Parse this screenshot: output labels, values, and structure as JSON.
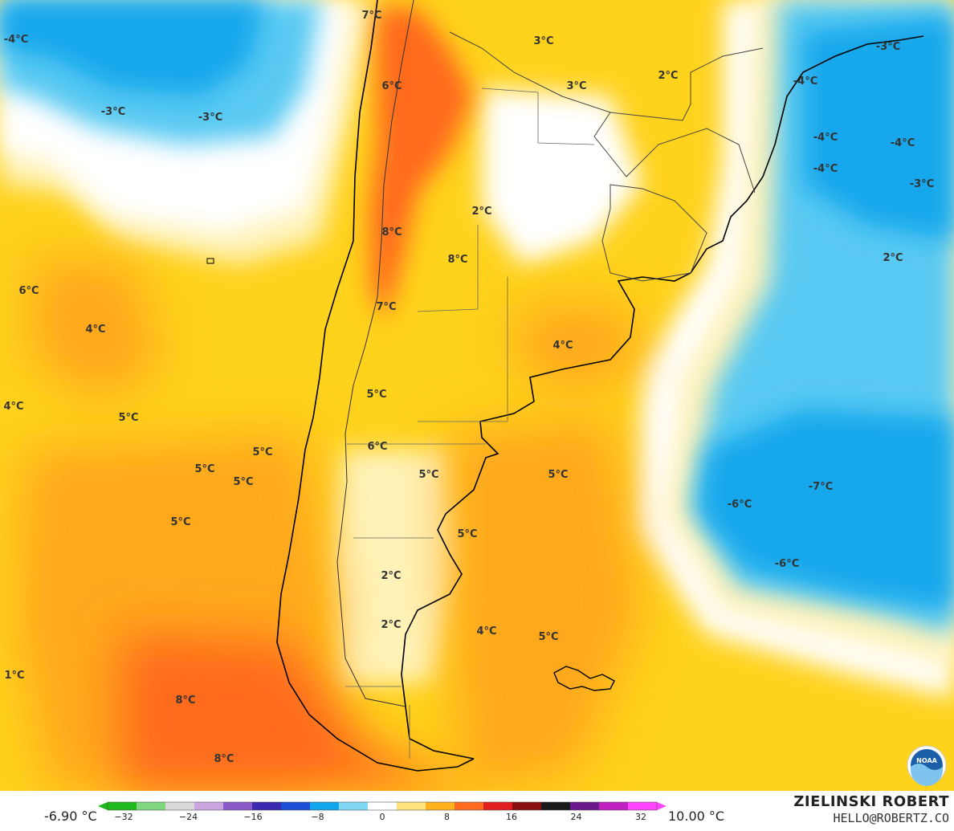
{
  "map": {
    "colors": {
      "ocean_cold": "#12a7ec",
      "ocean_cool": "#59c9f2",
      "ocean_pale": "#b9e9f9",
      "neutral": "#ffffff",
      "warm_pale": "#fff2b8",
      "warm": "#ffd21c",
      "warm_orange": "#ffa81c",
      "hot": "#ff6a1e",
      "coast": "#000000",
      "border": "#555555"
    },
    "labels": [
      {
        "id": "l1",
        "text": "-4°C"
      },
      {
        "id": "l2",
        "text": "-3°C"
      },
      {
        "id": "l3",
        "text": "-3°C"
      },
      {
        "id": "l4",
        "text": "7°C"
      },
      {
        "id": "l5",
        "text": "6°C"
      },
      {
        "id": "l6",
        "text": "3°C"
      },
      {
        "id": "l7",
        "text": "3°C"
      },
      {
        "id": "l8",
        "text": "2°C"
      },
      {
        "id": "l9",
        "text": "-3°C"
      },
      {
        "id": "l10",
        "text": "-4°C"
      },
      {
        "id": "l11",
        "text": "-4°C"
      },
      {
        "id": "l12",
        "text": "-4°C"
      },
      {
        "id": "l13",
        "text": "-4°C"
      },
      {
        "id": "l14",
        "text": "-3°C"
      },
      {
        "id": "l15",
        "text": "2°C"
      },
      {
        "id": "l16",
        "text": "2°C"
      },
      {
        "id": "l17",
        "text": "8°C"
      },
      {
        "id": "l18",
        "text": "8°C"
      },
      {
        "id": "l19",
        "text": "7°C"
      },
      {
        "id": "l20",
        "text": "5°C"
      },
      {
        "id": "l21",
        "text": "6°C"
      },
      {
        "id": "l22",
        "text": "4°C"
      },
      {
        "id": "l23",
        "text": "4°C"
      },
      {
        "id": "l24",
        "text": "4°C"
      },
      {
        "id": "l25",
        "text": "5°C"
      },
      {
        "id": "l26",
        "text": "6°C"
      },
      {
        "id": "l27",
        "text": "5°C"
      },
      {
        "id": "l28",
        "text": "5°C"
      },
      {
        "id": "l29",
        "text": "5°C"
      },
      {
        "id": "l30",
        "text": "5°C"
      },
      {
        "id": "l31",
        "text": "5°C"
      },
      {
        "id": "l32",
        "text": "5°C"
      },
      {
        "id": "l33",
        "text": "5°C"
      },
      {
        "id": "l34",
        "text": "-6°C"
      },
      {
        "id": "l35",
        "text": "-7°C"
      },
      {
        "id": "l36",
        "text": "-6°C"
      },
      {
        "id": "l37",
        "text": "2°C"
      },
      {
        "id": "l38",
        "text": "2°C"
      },
      {
        "id": "l39",
        "text": "4°C"
      },
      {
        "id": "l40",
        "text": "5°C"
      },
      {
        "id": "l41",
        "text": "1°C"
      },
      {
        "id": "l42",
        "text": "8°C"
      },
      {
        "id": "l43",
        "text": "8°C"
      }
    ],
    "logo": {
      "text": "NOAA",
      "icon": "noaa-logo-icon"
    }
  },
  "legend": {
    "min_label": "-6.90 °C",
    "max_label": "10.00 °C",
    "tick_labels": [
      "−32",
      "−24",
      "−16",
      "−8",
      "0",
      "8",
      "16",
      "24",
      "32"
    ],
    "colors": [
      "#1db91d",
      "#7fd67f",
      "#d9d9d9",
      "#c9a6e0",
      "#8b5cc9",
      "#3a2bb0",
      "#1e4fd6",
      "#12a7ec",
      "#7fd6f5",
      "#ffffff",
      "#ffe37a",
      "#ffb21c",
      "#ff6a1e",
      "#e0201e",
      "#8a1010",
      "#1a1a1a",
      "#6a1a8a",
      "#c020c0",
      "#ff44ff"
    ]
  },
  "credit": {
    "name": "ZIELINSKI ROBERT",
    "email": "HELLO@ROBERTZ.CO"
  }
}
